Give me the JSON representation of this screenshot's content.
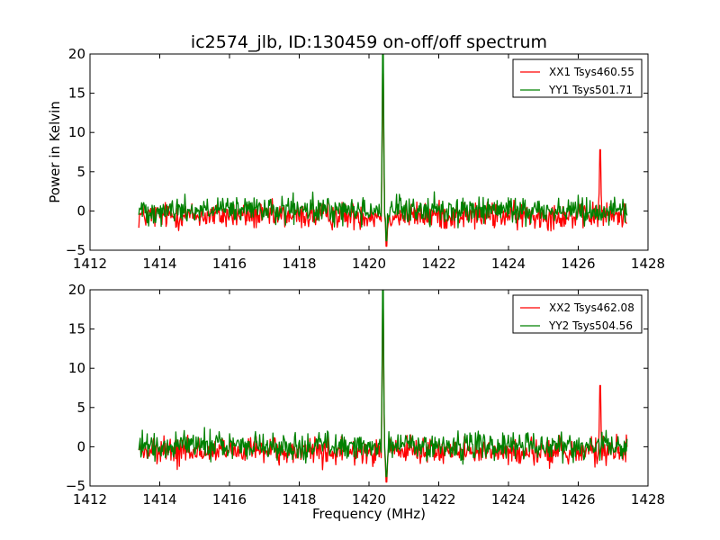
{
  "title": "ic2574_jlb, ID:130459 on-off/off spectrum",
  "xlabel": "Frequency (MHz)",
  "ylabel": "Power in Kelvin",
  "colors": {
    "red": "#ff0000",
    "green": "#008000"
  },
  "chart_data": [
    {
      "type": "line",
      "title": "ic2574_jlb, ID:130459 on-off/off spectrum",
      "xlabel": "",
      "ylabel": "Power in Kelvin",
      "xlim": [
        1412,
        1428
      ],
      "ylim": [
        -5,
        20
      ],
      "xticks": [
        "1412",
        "1414",
        "1416",
        "1418",
        "1420",
        "1422",
        "1424",
        "1426",
        "1428"
      ],
      "yticks": [
        "20",
        "15",
        "10",
        "5",
        "0",
        "−5"
      ],
      "legend_position": "top-right",
      "series": [
        {
          "name": "XX1 Tsys460.55",
          "color": "#ff0000",
          "x_range": [
            1413.4,
            1427.4
          ],
          "baseline": -0.6,
          "noise_amplitude": 1.4,
          "features": [
            {
              "x": 1420.4,
              "y": 17.5
            },
            {
              "x": 1420.5,
              "y": -4.5
            },
            {
              "x": 1426.63,
              "y": 7.8
            }
          ]
        },
        {
          "name": "YY1 Tsys501.71",
          "color": "#008000",
          "x_range": [
            1413.4,
            1427.4
          ],
          "baseline": 0.1,
          "noise_amplitude": 1.4,
          "features": [
            {
              "x": 1420.4,
              "y": 20
            },
            {
              "x": 1420.5,
              "y": -3.8
            }
          ]
        }
      ]
    },
    {
      "type": "line",
      "title": "",
      "xlabel": "Frequency (MHz)",
      "ylabel": "",
      "xlim": [
        1412,
        1428
      ],
      "ylim": [
        -5,
        20
      ],
      "xticks": [
        "1412",
        "1414",
        "1416",
        "1418",
        "1420",
        "1422",
        "1424",
        "1426",
        "1428"
      ],
      "yticks": [
        "20",
        "15",
        "10",
        "5",
        "0",
        "−5"
      ],
      "legend_position": "top-right",
      "series": [
        {
          "name": "XX2 Tsys462.08",
          "color": "#ff0000",
          "x_range": [
            1413.4,
            1427.4
          ],
          "baseline": -0.6,
          "noise_amplitude": 1.4,
          "features": [
            {
              "x": 1420.4,
              "y": 17.5
            },
            {
              "x": 1420.5,
              "y": -4.5
            },
            {
              "x": 1426.63,
              "y": 7.8
            }
          ]
        },
        {
          "name": "YY2 Tsys504.56",
          "color": "#008000",
          "x_range": [
            1413.4,
            1427.4
          ],
          "baseline": 0.1,
          "noise_amplitude": 1.4,
          "features": [
            {
              "x": 1420.4,
              "y": 20
            },
            {
              "x": 1420.5,
              "y": -3.8
            }
          ]
        }
      ]
    }
  ]
}
